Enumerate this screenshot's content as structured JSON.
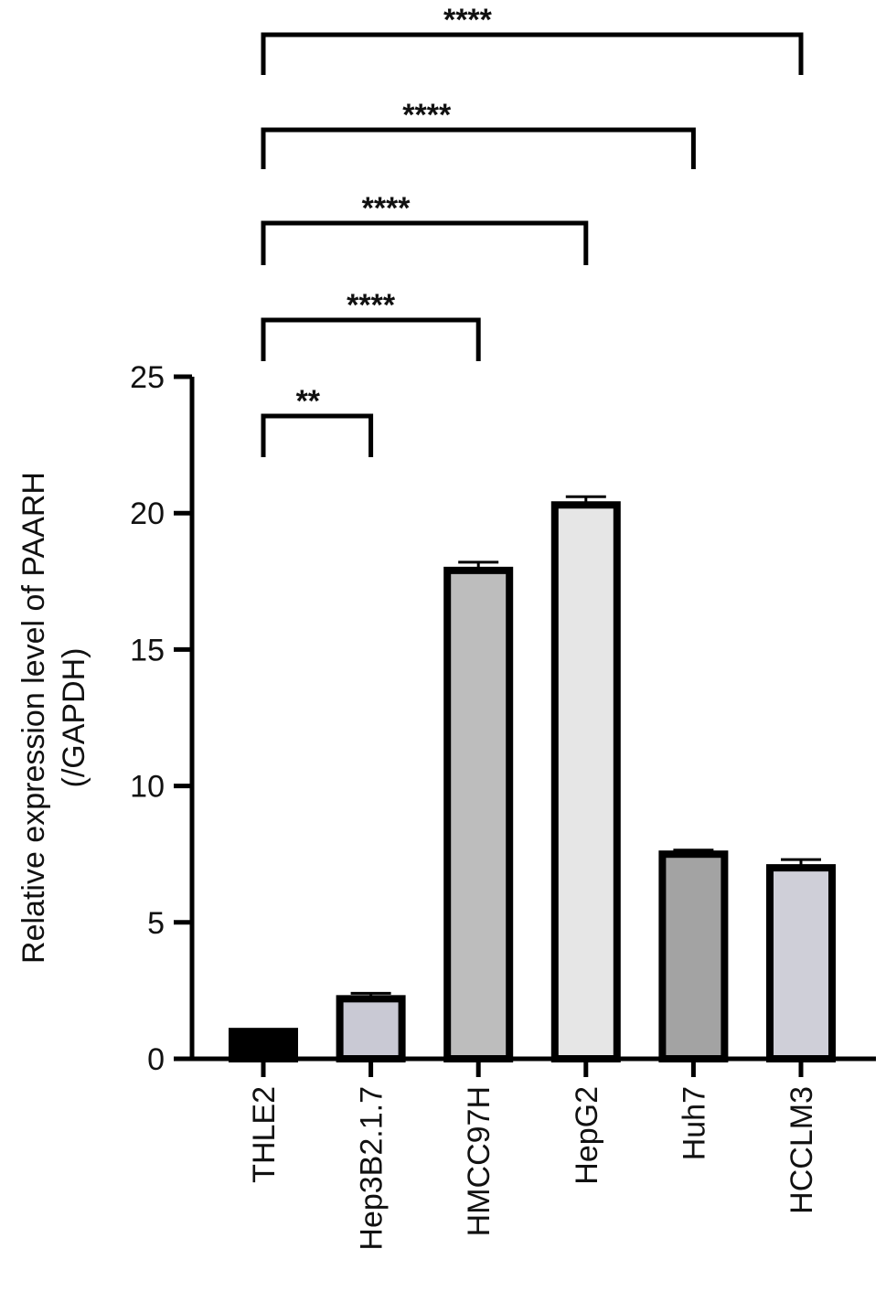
{
  "chart_data": {
    "type": "bar",
    "categories": [
      "THLE2",
      "Hep3B2.1.7",
      "HMCC97H",
      "HepG2",
      "Huh7",
      "HCCLM3"
    ],
    "values": [
      1.0,
      2.2,
      17.9,
      20.3,
      7.5,
      7.0
    ],
    "errors": [
      0.05,
      0.2,
      0.3,
      0.3,
      0.15,
      0.3
    ],
    "bar_colors": [
      "#000000",
      "#c9c9d4",
      "#bdbdbd",
      "#e6e6e6",
      "#a3a3a3",
      "#cfcfd8"
    ],
    "ylabel_lines": [
      "Relative expression level of PAARH",
      "(/GAPDH)"
    ],
    "ylim": [
      0,
      25
    ],
    "yticks": [
      "0",
      "5",
      "10",
      "15",
      "20",
      "25"
    ],
    "ytick_values": [
      0,
      5,
      10,
      15,
      20,
      25
    ],
    "comparisons": [
      {
        "from": "THLE2",
        "to": "Hep3B2.1.7",
        "label": "**"
      },
      {
        "from": "THLE2",
        "to": "HMCC97H",
        "label": "****"
      },
      {
        "from": "THLE2",
        "to": "HepG2",
        "label": "****"
      },
      {
        "from": "THLE2",
        "to": "Huh7",
        "label": "****"
      },
      {
        "from": "THLE2",
        "to": "HCCLM3",
        "label": "****"
      }
    ]
  }
}
